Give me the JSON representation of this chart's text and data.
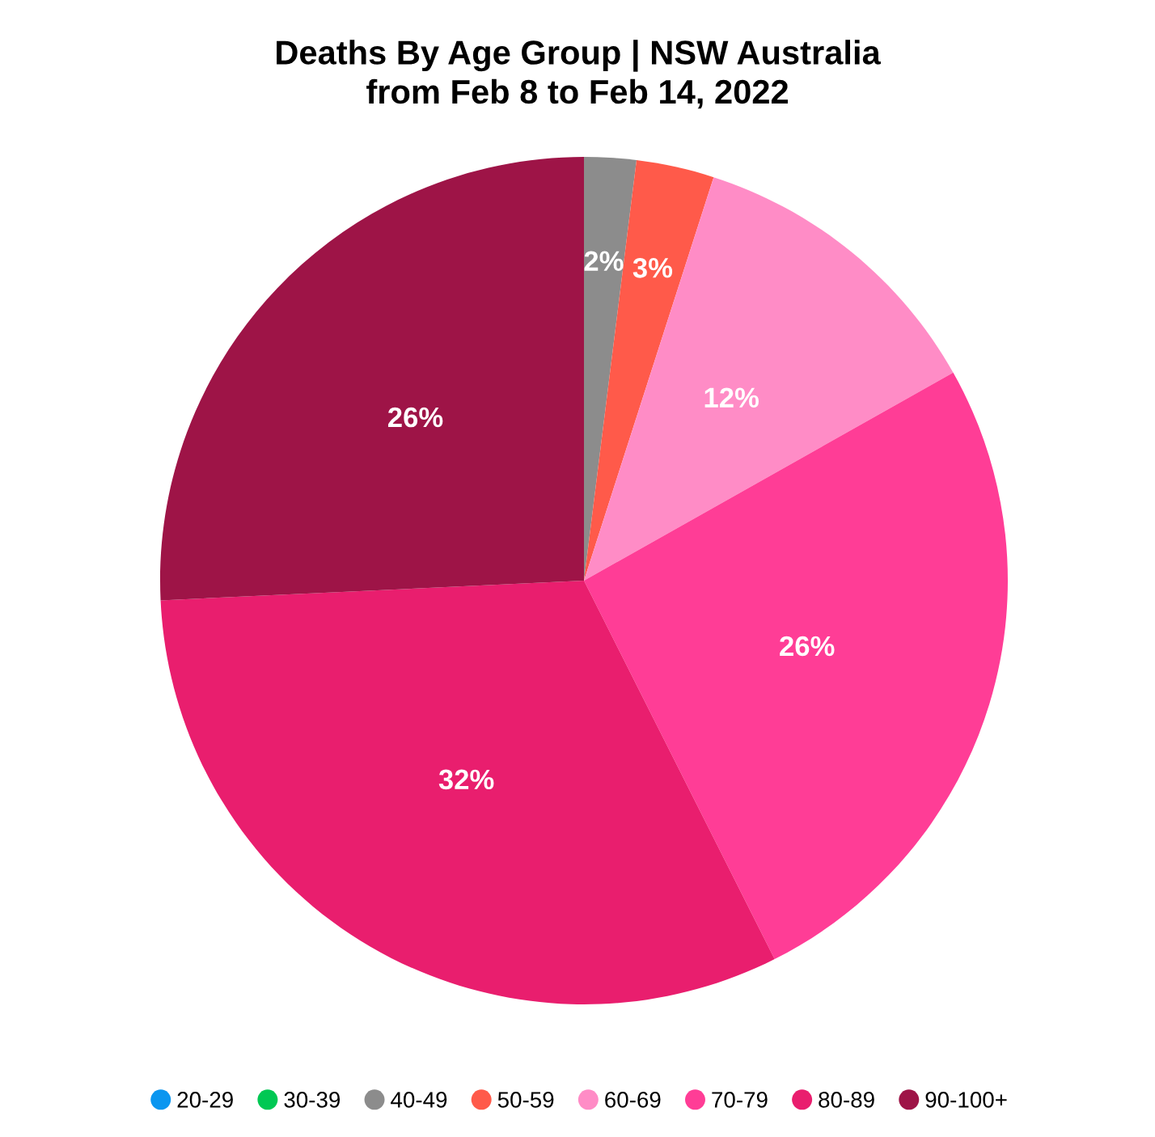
{
  "chart_data": {
    "type": "pie",
    "title": "Deaths By Age Group | NSW Australia\nfrom Feb 8 to Feb 14, 2022",
    "categories": [
      "20-29",
      "30-39",
      "40-49",
      "50-59",
      "60-69",
      "70-79",
      "80-89",
      "90-100+"
    ],
    "values": [
      0,
      0,
      2,
      3,
      12,
      26,
      32,
      26
    ],
    "value_labels": [
      null,
      null,
      "2%",
      "3%",
      "12%",
      "26%",
      "32%",
      "26%"
    ],
    "colors": [
      "#0a96f0",
      "#00c853",
      "#8c8c8c",
      "#ff5a4a",
      "#ff8cc6",
      "#ff3d96",
      "#e91e6e",
      "#9e1447"
    ],
    "legend": "bottom"
  }
}
